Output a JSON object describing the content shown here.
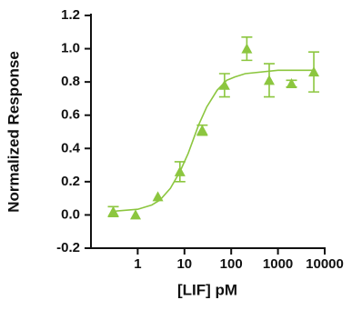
{
  "chart_data": {
    "type": "scatter",
    "y_label": "Normalized Response",
    "x_label": "[LIF] pM",
    "xscale": "log",
    "xlim": [
      0.1,
      10000
    ],
    "xticks": [
      1,
      10,
      100,
      1000,
      10000
    ],
    "ylim": [
      -0.2,
      1.2
    ],
    "yticks": [
      1.2,
      {
        "value": 1.0,
        "label": "1.0"
      },
      0.8,
      0.6,
      0.4,
      0.2,
      {
        "value": 0,
        "label": "0.0"
      },
      -0.2
    ],
    "color": "#8cc63f",
    "series": [
      {
        "color": "#8cc63f",
        "x": [
          0.3,
          0.9,
          2.7,
          8,
          24,
          72,
          216,
          650,
          1950,
          5850
        ],
        "values": [
          0.02,
          0.0,
          0.11,
          0.26,
          0.51,
          0.78,
          1.0,
          0.81,
          0.79,
          0.86
        ],
        "errors": [
          0.03,
          0.0,
          0.0,
          0.06,
          0.03,
          0.07,
          0.07,
          0.1,
          0.02,
          0.12
        ]
      }
    ],
    "fit": {
      "x": [
        0.3,
        1,
        2,
        3,
        5,
        8,
        12,
        20,
        30,
        50,
        80,
        120,
        200,
        1000,
        6000
      ],
      "values": [
        0.022,
        0.034,
        0.06,
        0.09,
        0.16,
        0.26,
        0.37,
        0.54,
        0.65,
        0.75,
        0.81,
        0.83,
        0.85,
        0.87,
        0.87
      ]
    }
  }
}
